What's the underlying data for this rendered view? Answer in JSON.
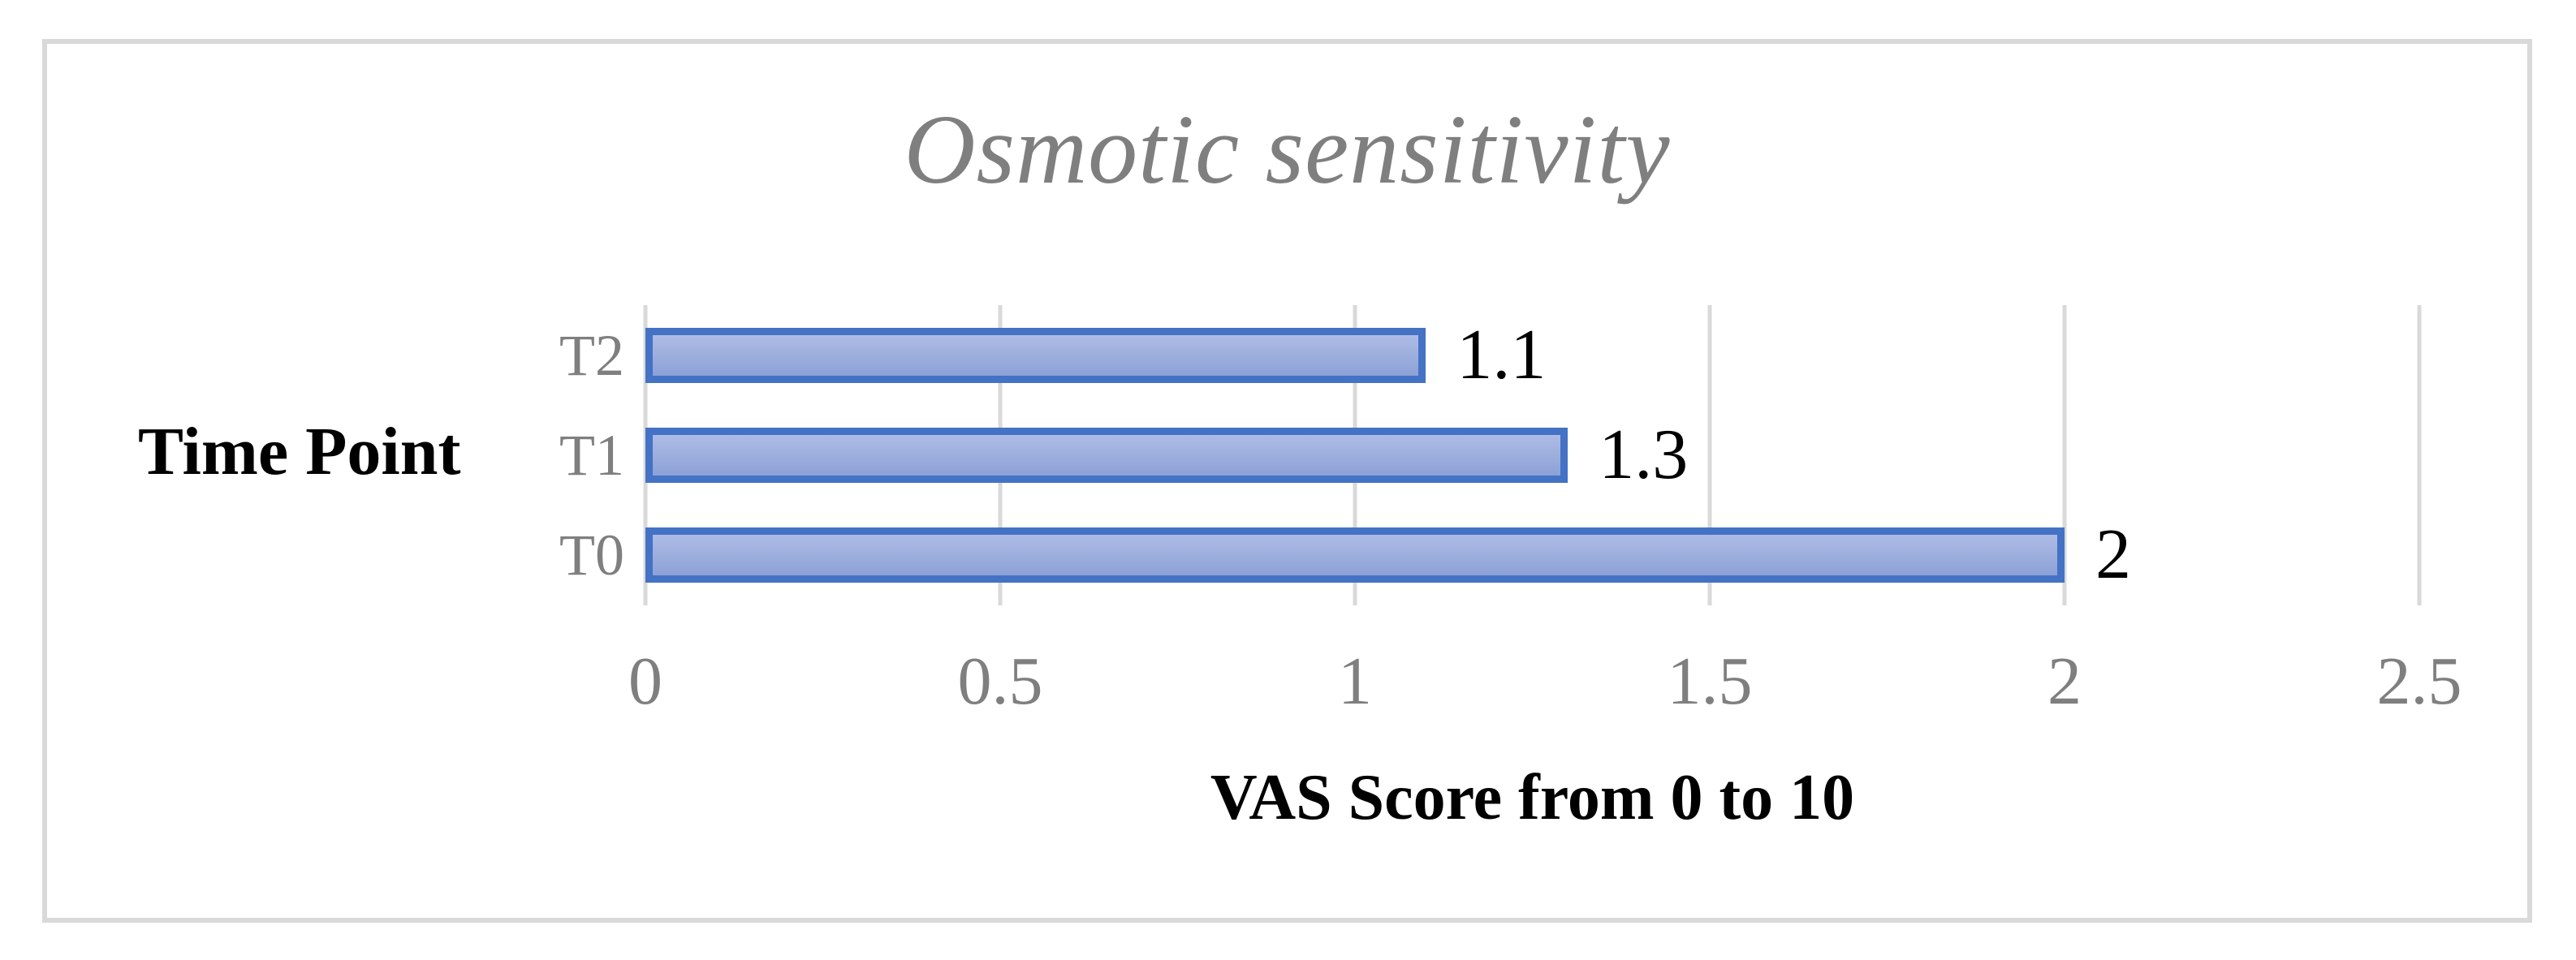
{
  "chart_data": {
    "type": "bar",
    "orientation": "horizontal",
    "title": "Osmotic sensitivity",
    "xlabel": "VAS Score from 0 to 10",
    "ylabel": "Time Point",
    "categories": [
      "T2",
      "T1",
      "T0"
    ],
    "values": [
      1.1,
      1.3,
      2
    ],
    "data_labels": [
      "1.1",
      "1.3",
      "2"
    ],
    "xlim": [
      0,
      2.5
    ],
    "x_ticks": [
      0,
      0.5,
      1,
      1.5,
      2,
      2.5
    ],
    "x_tick_labels": [
      "0",
      "0.5",
      "1",
      "1.5",
      "2",
      "2.5"
    ],
    "grid": true,
    "legend": "none",
    "colors": {
      "bar_border": "#4472c4",
      "bar_fill_top": "#aebbe6",
      "bar_fill_bottom": "#8da1d7",
      "gridline": "#d9d9d9",
      "frame_border": "#d9d9d9",
      "title_text": "#7f7f7f",
      "axis_tick_text": "#7f7f7f",
      "category_text": "#7f7f7f",
      "axis_title_text": "#000000",
      "data_label_text": "#000000"
    }
  }
}
